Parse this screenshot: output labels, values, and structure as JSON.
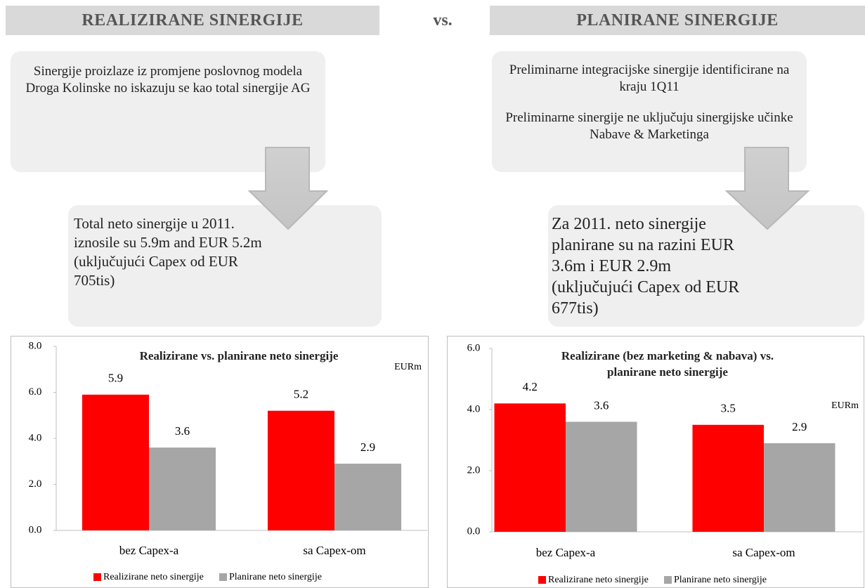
{
  "headers": {
    "left": "REALIZIRANE SINERGIJE",
    "vs": "vs.",
    "right": "PLANIRANE SINERGIJE"
  },
  "left": {
    "note": "Sinergije proizlaze iz promjene poslovnog modela Droga Kolinske no iskazuju se kao total sinergije AG",
    "result": "Total neto sinergije u 2011. iznosile su 5.9m and EUR 5.2m  (uključujući Capex od EUR 705tis)"
  },
  "right": {
    "notes": [
      "Preliminarne integracijske sinergije identificirane na kraju 1Q11",
      "Preliminarne sinergije ne uključuju sinergijske učinke Nabave & Marketinga"
    ],
    "result": "Za 2011. neto sinergije planirane su na razini EUR  3.6m i EUR 2.9m (uključujući Capex od EUR 677tis)"
  },
  "chart_data": [
    {
      "type": "bar",
      "title": "Realizirane vs. planirane neto sinergije",
      "unit": "EURm",
      "categories": [
        "bez Capex-a",
        "sa Capex-om"
      ],
      "series": [
        {
          "name": "Realizirane neto sinergije",
          "color": "#ff0000",
          "values": [
            5.9,
            5.2
          ]
        },
        {
          "name": "Planirane neto sinergije",
          "color": "#a6a6a6",
          "values": [
            3.6,
            2.9
          ]
        }
      ],
      "ylim": [
        0,
        8
      ],
      "yticks": [
        {
          "value": 0,
          "label": "0.0"
        },
        {
          "value": 2,
          "label": "2.0"
        },
        {
          "value": 4,
          "label": "4.0"
        },
        {
          "value": 6,
          "label": "6.0"
        },
        {
          "value": 8,
          "label": "8.0"
        }
      ]
    },
    {
      "type": "bar",
      "title": "Realizirane (bez marketing & nabava) vs. planirane neto sinergije",
      "unit": "EURm",
      "categories": [
        "bez Capex-a",
        "sa Capex-om"
      ],
      "series": [
        {
          "name": "Realizirane neto sinergije",
          "color": "#ff0000",
          "values": [
            4.2,
            3.5
          ]
        },
        {
          "name": "Planirane neto sinergije",
          "color": "#a6a6a6",
          "values": [
            3.6,
            2.9
          ]
        }
      ],
      "ylim": [
        0,
        6
      ],
      "yticks": [
        {
          "value": 0,
          "label": "0.0"
        },
        {
          "value": 2,
          "label": "2.0"
        },
        {
          "value": 4,
          "label": "4.0"
        },
        {
          "value": 6,
          "label": "6.0"
        }
      ]
    }
  ]
}
